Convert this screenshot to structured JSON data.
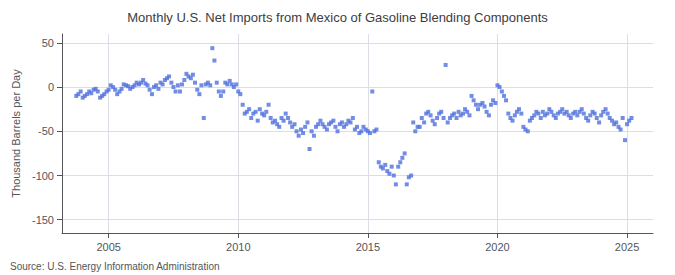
{
  "chart_data": {
    "type": "scatter",
    "title": "Monthly U.S. Net Imports from Mexico of Gasoline Blending Components",
    "ylabel": "Thousand Barrels per Day",
    "annotations": [
      "Source: U.S. Energy Information Administration"
    ],
    "marker": "square",
    "grid": true,
    "xlim": [
      2003.2,
      2026.0
    ],
    "xticks": [
      2005,
      2010,
      2015,
      2020,
      2025
    ],
    "ylim": [
      -165,
      60
    ],
    "yticks": [
      -150,
      -100,
      -50,
      0,
      50
    ],
    "x": [
      2003.75,
      2003.83,
      2003.92,
      2004.0,
      2004.08,
      2004.17,
      2004.25,
      2004.33,
      2004.42,
      2004.5,
      2004.58,
      2004.67,
      2004.75,
      2004.83,
      2004.92,
      2005.0,
      2005.08,
      2005.17,
      2005.25,
      2005.33,
      2005.42,
      2005.5,
      2005.58,
      2005.67,
      2005.75,
      2005.83,
      2005.92,
      2006.0,
      2006.08,
      2006.17,
      2006.25,
      2006.33,
      2006.42,
      2006.5,
      2006.58,
      2006.67,
      2006.75,
      2006.83,
      2006.92,
      2007.0,
      2007.08,
      2007.17,
      2007.25,
      2007.33,
      2007.42,
      2007.5,
      2007.58,
      2007.67,
      2007.75,
      2007.83,
      2007.92,
      2008.0,
      2008.08,
      2008.17,
      2008.25,
      2008.33,
      2008.42,
      2008.5,
      2008.58,
      2008.67,
      2008.75,
      2008.83,
      2008.92,
      2009.0,
      2009.08,
      2009.17,
      2009.25,
      2009.33,
      2009.42,
      2009.5,
      2009.58,
      2009.67,
      2009.75,
      2009.83,
      2009.92,
      2010.0,
      2010.08,
      2010.17,
      2010.25,
      2010.33,
      2010.42,
      2010.5,
      2010.58,
      2010.67,
      2010.75,
      2010.83,
      2010.92,
      2011.0,
      2011.08,
      2011.17,
      2011.25,
      2011.33,
      2011.42,
      2011.5,
      2011.58,
      2011.67,
      2011.75,
      2011.83,
      2011.92,
      2012.0,
      2012.08,
      2012.17,
      2012.25,
      2012.33,
      2012.42,
      2012.5,
      2012.58,
      2012.67,
      2012.75,
      2012.83,
      2012.92,
      2013.0,
      2013.08,
      2013.17,
      2013.25,
      2013.33,
      2013.42,
      2013.5,
      2013.58,
      2013.67,
      2013.75,
      2013.83,
      2013.92,
      2014.0,
      2014.08,
      2014.17,
      2014.25,
      2014.33,
      2014.42,
      2014.5,
      2014.58,
      2014.67,
      2014.75,
      2014.83,
      2014.92,
      2015.0,
      2015.08,
      2015.17,
      2015.25,
      2015.33,
      2015.42,
      2015.5,
      2015.58,
      2015.67,
      2015.75,
      2015.83,
      2015.92,
      2016.0,
      2016.08,
      2016.17,
      2016.25,
      2016.33,
      2016.42,
      2016.5,
      2016.58,
      2016.67,
      2016.75,
      2016.83,
      2016.92,
      2017.0,
      2017.08,
      2017.17,
      2017.25,
      2017.33,
      2017.42,
      2017.5,
      2017.58,
      2017.67,
      2017.75,
      2017.83,
      2017.92,
      2018.0,
      2018.08,
      2018.17,
      2018.25,
      2018.33,
      2018.42,
      2018.5,
      2018.58,
      2018.67,
      2018.75,
      2018.83,
      2018.92,
      2019.0,
      2019.08,
      2019.17,
      2019.25,
      2019.33,
      2019.42,
      2019.5,
      2019.58,
      2019.67,
      2019.75,
      2019.83,
      2019.92,
      2020.0,
      2020.08,
      2020.17,
      2020.25,
      2020.33,
      2020.42,
      2020.5,
      2020.58,
      2020.67,
      2020.75,
      2020.83,
      2020.92,
      2021.0,
      2021.08,
      2021.17,
      2021.25,
      2021.33,
      2021.42,
      2021.5,
      2021.58,
      2021.67,
      2021.75,
      2021.83,
      2021.92,
      2022.0,
      2022.08,
      2022.17,
      2022.25,
      2022.33,
      2022.42,
      2022.5,
      2022.58,
      2022.67,
      2022.75,
      2022.83,
      2022.92,
      2023.0,
      2023.08,
      2023.17,
      2023.25,
      2023.33,
      2023.42,
      2023.5,
      2023.58,
      2023.67,
      2023.75,
      2023.83,
      2023.92,
      2024.0,
      2024.08,
      2024.17,
      2024.25,
      2024.33,
      2024.42,
      2024.5,
      2024.58,
      2024.67,
      2024.75,
      2024.83,
      2024.92,
      2025.0,
      2025.08,
      2025.17
    ],
    "values": [
      -10,
      -8,
      -5,
      -12,
      -10,
      -8,
      -5,
      -7,
      -3,
      -2,
      -5,
      -12,
      -10,
      -8,
      -5,
      -3,
      2,
      0,
      -3,
      -8,
      -5,
      -2,
      3,
      2,
      1,
      -2,
      0,
      2,
      5,
      3,
      5,
      8,
      4,
      2,
      -3,
      -8,
      0,
      2,
      -2,
      5,
      3,
      8,
      10,
      12,
      5,
      0,
      -5,
      2,
      -5,
      3,
      8,
      15,
      12,
      10,
      14,
      5,
      -3,
      -8,
      2,
      -35,
      3,
      5,
      2,
      44,
      30,
      5,
      -5,
      -10,
      -5,
      5,
      3,
      7,
      3,
      0,
      3,
      -5,
      -8,
      -20,
      -30,
      -28,
      -25,
      -35,
      -30,
      -28,
      -38,
      -25,
      -30,
      -32,
      -28,
      -20,
      -35,
      -40,
      -38,
      -42,
      -45,
      -35,
      -38,
      -30,
      -35,
      -40,
      -45,
      -42,
      -50,
      -55,
      -48,
      -52,
      -45,
      -40,
      -70,
      -50,
      -55,
      -45,
      -42,
      -38,
      -42,
      -45,
      -48,
      -42,
      -40,
      -38,
      -45,
      -50,
      -42,
      -40,
      -45,
      -42,
      -38,
      -40,
      -35,
      -48,
      -45,
      -52,
      -50,
      -45,
      -48,
      -50,
      -52,
      -5,
      -50,
      -48,
      -85,
      -90,
      -92,
      -88,
      -95,
      -98,
      -90,
      -100,
      -110,
      -90,
      -85,
      -80,
      -75,
      -110,
      -102,
      -100,
      -40,
      -50,
      -45,
      -45,
      -35,
      -40,
      -30,
      -28,
      -32,
      -38,
      -42,
      -35,
      -30,
      -28,
      -35,
      25,
      -40,
      -35,
      -32,
      -30,
      -35,
      -28,
      -32,
      -30,
      -25,
      -28,
      -32,
      -10,
      -15,
      -20,
      -25,
      -20,
      -18,
      -22,
      -28,
      -32,
      -20,
      -15,
      -18,
      2,
      0,
      -5,
      -10,
      -15,
      -30,
      -35,
      -38,
      -32,
      -28,
      -25,
      -30,
      -45,
      -48,
      -50,
      -38,
      -35,
      -32,
      -28,
      -30,
      -35,
      -28,
      -32,
      -30,
      -25,
      -28,
      -32,
      -35,
      -30,
      -28,
      -25,
      -30,
      -28,
      -32,
      -35,
      -30,
      -28,
      -32,
      -28,
      -25,
      -30,
      -35,
      -38,
      -32,
      -28,
      -30,
      -35,
      -40,
      -32,
      -28,
      -25,
      -30,
      -35,
      -38,
      -42,
      -40,
      -45,
      -48,
      -35,
      -60,
      -42,
      -38,
      -35
    ]
  }
}
